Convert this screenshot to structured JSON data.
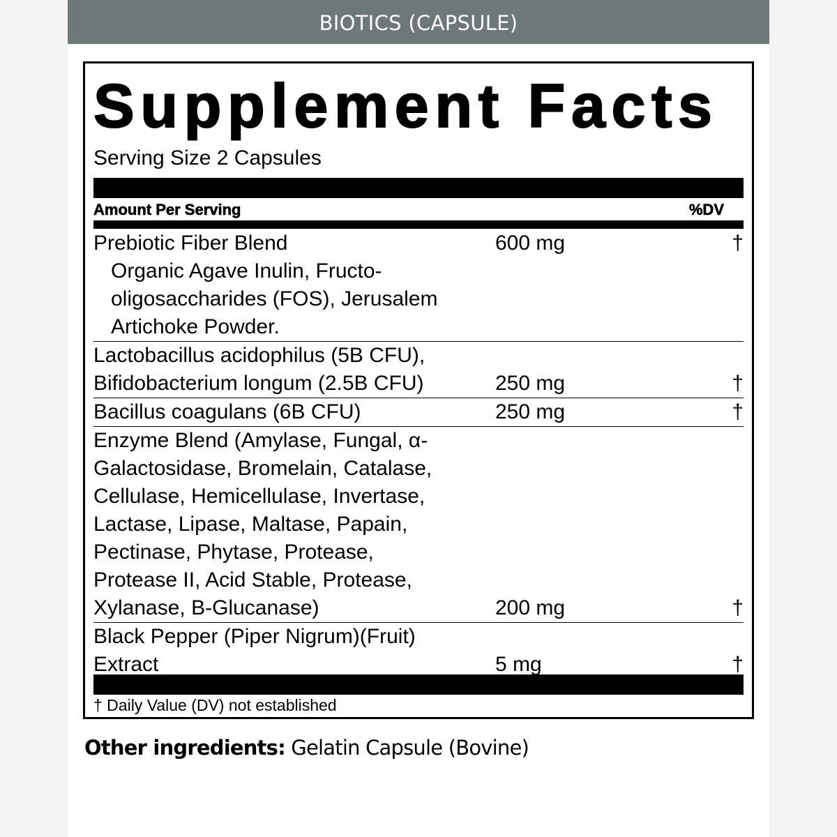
{
  "header": {
    "title": "BIOTICS (CAPSULE)",
    "background": "#6f7878"
  },
  "label": {
    "title": "Supplement Facts",
    "serving_size": "Serving Size 2 Capsules",
    "amount_per_serving": "Amount Per Serving",
    "dv_header": "%DV",
    "rows": [
      {
        "lines": [
          "Prebiotic Fiber Blend"
        ],
        "sublines": [
          "Organic Agave Inulin, Fructo-",
          "oligosaccharides (FOS), Jerusalem",
          "Artichoke Powder."
        ],
        "amount": "600 mg",
        "dv": "†",
        "amount_on_first": true
      },
      {
        "lines": [
          "Lactobacillus acidophilus (5B CFU),",
          "Bifidobacterium longum (2.5B CFU)"
        ],
        "amount": "250 mg",
        "dv": "†"
      },
      {
        "lines": [
          "Bacillus coagulans (6B CFU)"
        ],
        "amount": "250 mg",
        "dv": "†"
      },
      {
        "lines": [
          "Enzyme Blend (Amylase, Fungal, α-",
          "Galactosidase, Bromelain, Catalase,",
          "Cellulase, Hemicellulase, Invertase,",
          "Lactase, Lipase, Maltase, Papain,",
          "Pectinase, Phytase, Protease,",
          "Protease II, Acid Stable, Protease,",
          "Xylanase, B-Glucanase)"
        ],
        "amount": "200 mg",
        "dv": "†"
      },
      {
        "lines": [
          "Black Pepper (Piper Nigrum)(Fruit)",
          "Extract"
        ],
        "amount": "5 mg",
        "dv": "†"
      }
    ],
    "footnote": "† Daily Value (DV) not established"
  },
  "other_ingredients": {
    "label": "Other ingredients:",
    "value": " Gelatin Capsule (Bovine)"
  }
}
